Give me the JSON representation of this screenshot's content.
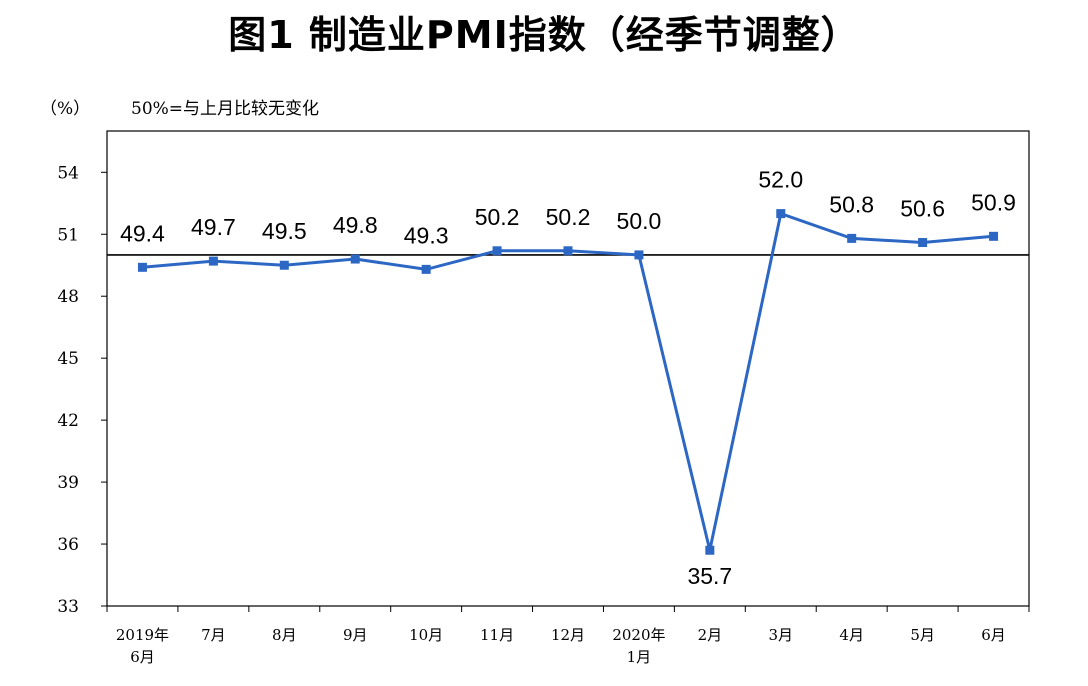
{
  "chart_data": {
    "type": "line",
    "title": "图1  制造业PMI指数（经季节调整）",
    "unit_label": "（%）",
    "note": "50%=与上月比较无变化",
    "ylim": [
      33,
      56
    ],
    "yticks": [
      33,
      36,
      39,
      42,
      45,
      48,
      51,
      54
    ],
    "reference_line": 50,
    "grid": false,
    "categories": [
      [
        "2019年",
        "6月"
      ],
      [
        "7月"
      ],
      [
        "8月"
      ],
      [
        "9月"
      ],
      [
        "10月"
      ],
      [
        "11月"
      ],
      [
        "12月"
      ],
      [
        "2020年",
        "1月"
      ],
      [
        "2月"
      ],
      [
        "3月"
      ],
      [
        "4月"
      ],
      [
        "5月"
      ],
      [
        "6月"
      ]
    ],
    "series": [
      {
        "values": [
          49.4,
          49.7,
          49.5,
          49.8,
          49.3,
          50.2,
          50.2,
          50.0,
          35.7,
          52.0,
          50.8,
          50.6,
          50.9
        ],
        "labels": [
          "49.4",
          "49.7",
          "49.5",
          "49.8",
          "49.3",
          "50.2",
          "50.2",
          "50.0",
          "35.7",
          "52.0",
          "50.8",
          "50.6",
          "50.9"
        ]
      }
    ],
    "colors": {
      "line": "#2d67c4",
      "axis": "#000000"
    }
  }
}
